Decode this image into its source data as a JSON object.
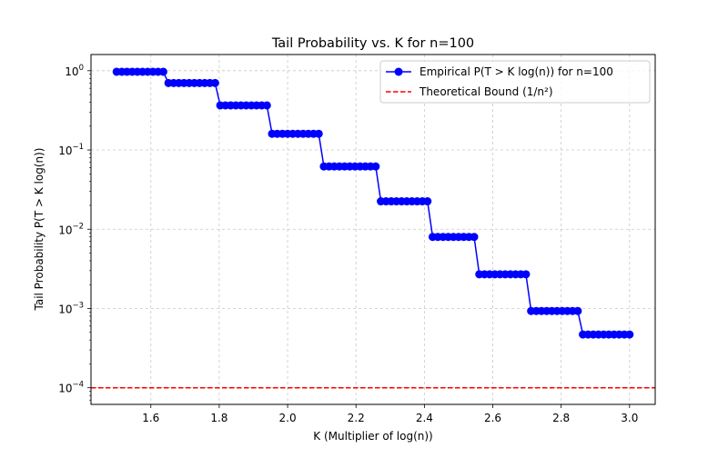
{
  "chart_data": {
    "type": "line",
    "title": "Tail Probability vs. K for n=100",
    "xlabel": "K (Multiplier of log(n))",
    "ylabel": "Tail Probability P(T > K log(n))",
    "xscale": "linear",
    "yscale": "log",
    "xlim": [
      1.425,
      3.075
    ],
    "ylim": [
      6.17e-05,
      1.6
    ],
    "grid": true,
    "legend_position": "top-right",
    "x_ticks": [
      1.6,
      1.8,
      2.0,
      2.2,
      2.4,
      2.6,
      2.8,
      3.0
    ],
    "x_tick_labels": [
      "1.6",
      "1.8",
      "2.0",
      "2.2",
      "2.4",
      "2.6",
      "2.8",
      "3.0"
    ],
    "y_ticks": [
      1,
      0.1,
      0.01,
      0.001,
      0.0001
    ],
    "y_tick_labels": [
      {
        "base": "10",
        "exp": "0"
      },
      {
        "base": "10",
        "exp": "−1"
      },
      {
        "base": "10",
        "exp": "−2"
      },
      {
        "base": "10",
        "exp": "−3"
      },
      {
        "base": "10",
        "exp": "−4"
      }
    ],
    "series": [
      {
        "name": "Empirical P(T > K log(n)) for n=100",
        "color": "#0000ff",
        "marker": "circle",
        "x_range": [
          1.5,
          3.0
        ],
        "points_count": 100,
        "steps": [
          {
            "x_start": 1.5,
            "x_end": 1.65,
            "y": 0.97
          },
          {
            "x_start": 1.65,
            "x_end": 1.8,
            "y": 0.7
          },
          {
            "x_start": 1.8,
            "x_end": 1.95,
            "y": 0.365
          },
          {
            "x_start": 1.95,
            "x_end": 2.1,
            "y": 0.16
          },
          {
            "x_start": 2.1,
            "x_end": 2.26,
            "y": 0.062
          },
          {
            "x_start": 2.26,
            "x_end": 2.41,
            "y": 0.0225
          },
          {
            "x_start": 2.41,
            "x_end": 2.56,
            "y": 0.008
          },
          {
            "x_start": 2.56,
            "x_end": 2.71,
            "y": 0.0027
          },
          {
            "x_start": 2.71,
            "x_end": 2.86,
            "y": 0.00093
          },
          {
            "x_start": 2.86,
            "x_end": 3.0,
            "y": 0.00047
          }
        ]
      },
      {
        "name": "Theoretical Bound (1/n²)",
        "color": "#ff0000",
        "linestyle": "dashed",
        "y": 0.0001
      }
    ]
  }
}
